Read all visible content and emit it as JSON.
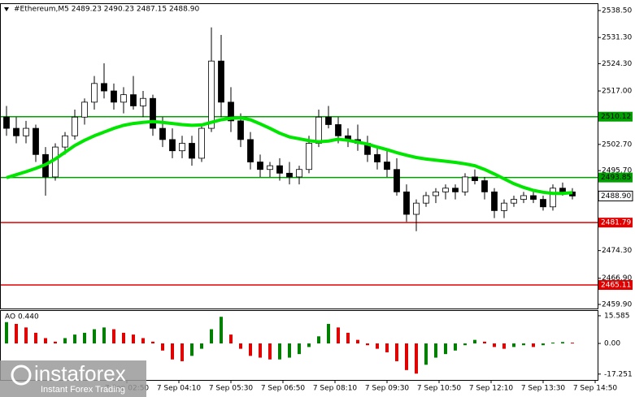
{
  "chart_data": [
    {
      "type": "candlestick",
      "title": "#Ethereum,M5  2489.23 2490.23 2487.15 2488.90",
      "x": [
        -15,
        0,
        15,
        30,
        45,
        60,
        75,
        90,
        105,
        120,
        135,
        150,
        165,
        180,
        195,
        210,
        225,
        240,
        255,
        270,
        285,
        300,
        315,
        330,
        345,
        360,
        375,
        390,
        405,
        420,
        435,
        450,
        465,
        480,
        495,
        510,
        525,
        540,
        555,
        570,
        585,
        600,
        615,
        630,
        645,
        660,
        675,
        690,
        705,
        720,
        735,
        750,
        765,
        780,
        795,
        810,
        825,
        840,
        855
      ],
      "open": [
        2510,
        2507,
        2505,
        2507,
        2500,
        2494,
        2502,
        2505,
        2510,
        2514,
        2519,
        2517,
        2514,
        2516,
        2513,
        2515,
        2507,
        2504,
        2501,
        2503,
        2499,
        2507,
        2525,
        2514,
        2509,
        2504,
        2498,
        2496,
        2497,
        2495,
        2494,
        2496,
        2503,
        2510,
        2508,
        2505,
        2504,
        2503,
        2500,
        2498,
        2496,
        2490,
        2484,
        2487,
        2489,
        2490,
        2491,
        2490,
        2494,
        2493,
        2490,
        2485,
        2487,
        2488,
        2489,
        2488,
        2486,
        2491,
        2490
      ],
      "high": [
        2513,
        2510,
        2509,
        2508,
        2502,
        2503,
        2506,
        2512,
        2515,
        2521,
        2524.4,
        2519,
        2518,
        2521,
        2517,
        2516,
        2510,
        2507,
        2505,
        2505,
        2508,
        2534,
        2532,
        2518,
        2511,
        2506,
        2500,
        2498,
        2499,
        2498,
        2497,
        2505,
        2512,
        2513,
        2510,
        2507,
        2508,
        2505,
        2502,
        2501,
        2499,
        2492,
        2488,
        2490,
        2491,
        2492,
        2492,
        2495,
        2496,
        2494,
        2491,
        2488,
        2489,
        2490,
        2490,
        2489,
        2492,
        2492.5,
        2491
      ],
      "low": [
        2505,
        2503,
        2503,
        2498,
        2489,
        2493,
        2500,
        2504,
        2508,
        2512,
        2515,
        2512,
        2511,
        2512,
        2510,
        2505,
        2502,
        2499,
        2499,
        2497,
        2498,
        2506,
        2510,
        2506,
        2502,
        2496,
        2494,
        2494,
        2493,
        2492,
        2492,
        2495,
        2502,
        2507,
        2503,
        2502,
        2501,
        2498,
        2496,
        2494,
        2489,
        2482,
        2479.5,
        2486,
        2487,
        2488,
        2488,
        2489,
        2492,
        2488,
        2483,
        2483,
        2486,
        2487,
        2487,
        2485,
        2485,
        2489,
        2488
      ],
      "close": [
        2507,
        2505,
        2507,
        2500,
        2494,
        2502,
        2505,
        2510,
        2514,
        2519,
        2517,
        2514,
        2516,
        2513,
        2515,
        2507,
        2504,
        2501,
        2503,
        2499,
        2507,
        2525,
        2514,
        2509,
        2504,
        2498,
        2496,
        2497,
        2495,
        2494,
        2496,
        2503,
        2510,
        2508,
        2505,
        2504,
        2503,
        2500,
        2498,
        2496,
        2490,
        2484,
        2487,
        2489,
        2490,
        2491,
        2490,
        2494,
        2493,
        2490,
        2485,
        2487,
        2488,
        2489,
        2488,
        2486,
        2491,
        2490,
        2488.9
      ],
      "up_color": "#ffffff",
      "down_color": "#000000",
      "ma": {
        "color": "#00e600",
        "values": [
          2493.8,
          2494.6,
          2495.4,
          2496.3,
          2497.3,
          2498.8,
          2500.6,
          2502.4,
          2503.8,
          2505.0,
          2506.0,
          2507.0,
          2507.8,
          2508.3,
          2508.6,
          2508.8,
          2508.6,
          2508.3,
          2508.0,
          2507.8,
          2507.9,
          2508.6,
          2509.3,
          2509.7,
          2509.8,
          2509.3,
          2508.2,
          2507.0,
          2505.7,
          2504.7,
          2504.2,
          2503.7,
          2503.4,
          2503.6,
          2504.1,
          2503.8,
          2503.3,
          2502.8,
          2502.0,
          2501.3,
          2500.5,
          2499.8,
          2499.2,
          2498.8,
          2498.5,
          2498.2,
          2497.9,
          2497.5,
          2497.0,
          2496.0,
          2494.8,
          2493.5,
          2492.2,
          2491.2,
          2490.4,
          2489.9,
          2489.6,
          2489.6,
          2489.8
        ]
      },
      "levels": [
        {
          "value": 2510.12,
          "color": "#00a000",
          "text_color": "#000000"
        },
        {
          "value": 2493.85,
          "color": "#00a000",
          "text_color": "#000000"
        },
        {
          "value": 2481.79,
          "color": "#e00000",
          "text_color": "#ffffff"
        },
        {
          "value": 2465.11,
          "color": "#e00000",
          "text_color": "#ffffff"
        }
      ],
      "last_price": {
        "value": 2488.9,
        "label": "2488.90"
      },
      "xlim": [
        -25,
        893.75
      ],
      "xticks": [
        {
          "value": 170,
          "label": "7 Sep 02:50"
        },
        {
          "value": 250,
          "label": "7 Sep 04:10"
        },
        {
          "value": 330,
          "label": "7 Sep 05:30"
        },
        {
          "value": 410,
          "label": "7 Sep 06:50"
        },
        {
          "value": 490,
          "label": "7 Sep 08:10"
        },
        {
          "value": 570,
          "label": "7 Sep 09:30"
        },
        {
          "value": 650,
          "label": "7 Sep 10:50"
        },
        {
          "value": 730,
          "label": "7 Sep 12:10"
        },
        {
          "value": 810,
          "label": "7 Sep 13:30"
        },
        {
          "value": 890,
          "label": "7 Sep 14:50"
        }
      ],
      "ylim": [
        2458.81,
        2540.24
      ],
      "yticks": [
        {
          "value": 2538.5,
          "label": "2538.50"
        },
        {
          "value": 2531.3,
          "label": "2531.30"
        },
        {
          "value": 2524.3,
          "label": "2524.30"
        },
        {
          "value": 2517.0,
          "label": "2517.00"
        },
        {
          "value": 2502.7,
          "label": "2502.70"
        },
        {
          "value": 2495.7,
          "label": "2495.70"
        },
        {
          "value": 2474.3,
          "label": "2474.30"
        },
        {
          "value": 2466.9,
          "label": "2466.90"
        },
        {
          "value": 2459.9,
          "label": "2459.90"
        }
      ]
    },
    {
      "type": "bar",
      "title": "AO 0.440",
      "x": [
        -15,
        0,
        15,
        30,
        45,
        60,
        75,
        90,
        105,
        120,
        135,
        150,
        165,
        180,
        195,
        210,
        225,
        240,
        255,
        270,
        285,
        300,
        315,
        330,
        345,
        360,
        375,
        390,
        405,
        420,
        435,
        450,
        465,
        480,
        495,
        510,
        525,
        540,
        555,
        570,
        585,
        600,
        615,
        630,
        645,
        660,
        675,
        690,
        705,
        720,
        735,
        750,
        765,
        780,
        795,
        810,
        825,
        840,
        855
      ],
      "values": [
        12,
        11,
        9,
        6,
        3,
        1,
        3,
        5,
        6,
        8,
        9,
        8,
        6,
        5,
        3,
        1,
        -4,
        -9,
        -10,
        -7,
        -3,
        8,
        15,
        5,
        -3,
        -7,
        -8,
        -9,
        -9,
        -8,
        -6,
        -2,
        4,
        11,
        9,
        6,
        2,
        -1,
        -3,
        -5,
        -10,
        -15,
        -17,
        -12,
        -8,
        -6,
        -4,
        -1,
        2,
        1,
        -2,
        -3,
        -2,
        -1,
        -2,
        -1,
        0.5,
        0.8,
        0.44
      ],
      "up_color": "#008000",
      "down_color": "#e00000",
      "xlim": [
        -25,
        893.75
      ],
      "ylim": [
        -20.1,
        18.3
      ],
      "yticks": [
        15.585,
        {
          "value": 0,
          "label": "0.00"
        },
        -17.251
      ]
    }
  ],
  "watermark": {
    "brand": "instaforex",
    "tagline": "Instant Forex Trading"
  }
}
